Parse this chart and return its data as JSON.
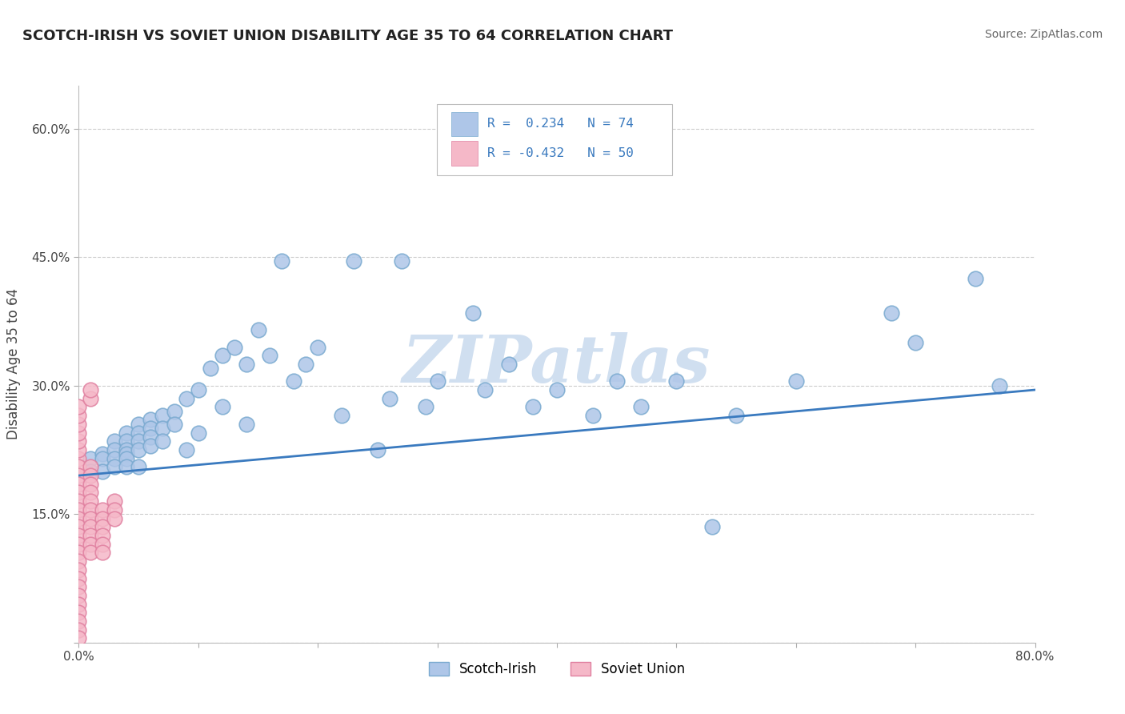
{
  "title": "SCOTCH-IRISH VS SOVIET UNION DISABILITY AGE 35 TO 64 CORRELATION CHART",
  "source": "Source: ZipAtlas.com",
  "ylabel_label": "Disability Age 35 to 64",
  "xlim": [
    0.0,
    0.8
  ],
  "ylim": [
    0.0,
    0.65
  ],
  "xticks": [
    0.0,
    0.1,
    0.2,
    0.3,
    0.4,
    0.5,
    0.6,
    0.7,
    0.8
  ],
  "xticklabels": [
    "0.0%",
    "",
    "",
    "",
    "",
    "",
    "",
    "",
    "80.0%"
  ],
  "yticks": [
    0.0,
    0.15,
    0.3,
    0.45,
    0.6
  ],
  "yticklabels": [
    "",
    "15.0%",
    "30.0%",
    "45.0%",
    "60.0%"
  ],
  "scotch_irish_color": "#aec6e8",
  "soviet_union_color": "#f5b8c8",
  "line_color": "#3a7abf",
  "regression_line": [
    [
      0.0,
      0.195
    ],
    [
      0.8,
      0.295
    ]
  ],
  "scotch_irish_x": [
    0.01,
    0.01,
    0.02,
    0.02,
    0.02,
    0.03,
    0.03,
    0.03,
    0.03,
    0.04,
    0.04,
    0.04,
    0.04,
    0.04,
    0.04,
    0.05,
    0.05,
    0.05,
    0.05,
    0.05,
    0.06,
    0.06,
    0.06,
    0.06,
    0.07,
    0.07,
    0.07,
    0.08,
    0.08,
    0.09,
    0.09,
    0.1,
    0.1,
    0.11,
    0.12,
    0.12,
    0.13,
    0.14,
    0.14,
    0.15,
    0.16,
    0.17,
    0.18,
    0.19,
    0.2,
    0.22,
    0.23,
    0.25,
    0.26,
    0.27,
    0.29,
    0.3,
    0.33,
    0.34,
    0.36,
    0.38,
    0.4,
    0.43,
    0.45,
    0.47,
    0.5,
    0.53,
    0.55,
    0.6,
    0.68,
    0.7,
    0.75,
    0.77
  ],
  "scotch_irish_y": [
    0.215,
    0.2,
    0.22,
    0.215,
    0.2,
    0.235,
    0.225,
    0.215,
    0.205,
    0.245,
    0.235,
    0.225,
    0.22,
    0.215,
    0.205,
    0.255,
    0.245,
    0.235,
    0.225,
    0.205,
    0.26,
    0.25,
    0.24,
    0.23,
    0.265,
    0.25,
    0.235,
    0.27,
    0.255,
    0.285,
    0.225,
    0.295,
    0.245,
    0.32,
    0.335,
    0.275,
    0.345,
    0.325,
    0.255,
    0.365,
    0.335,
    0.445,
    0.305,
    0.325,
    0.345,
    0.265,
    0.445,
    0.225,
    0.285,
    0.445,
    0.275,
    0.305,
    0.385,
    0.295,
    0.325,
    0.275,
    0.295,
    0.265,
    0.305,
    0.275,
    0.305,
    0.135,
    0.265,
    0.305,
    0.385,
    0.35,
    0.425,
    0.3
  ],
  "soviet_union_x": [
    0.0,
    0.0,
    0.0,
    0.0,
    0.0,
    0.0,
    0.0,
    0.0,
    0.0,
    0.0,
    0.0,
    0.0,
    0.0,
    0.0,
    0.0,
    0.0,
    0.0,
    0.0,
    0.0,
    0.0,
    0.0,
    0.0,
    0.0,
    0.0,
    0.0,
    0.0,
    0.0,
    0.0,
    0.01,
    0.01,
    0.01,
    0.01,
    0.01,
    0.01,
    0.01,
    0.01,
    0.01,
    0.01,
    0.01,
    0.01,
    0.01,
    0.02,
    0.02,
    0.02,
    0.02,
    0.02,
    0.02,
    0.03,
    0.03,
    0.03
  ],
  "soviet_union_y": [
    0.215,
    0.205,
    0.195,
    0.185,
    0.175,
    0.165,
    0.155,
    0.145,
    0.135,
    0.125,
    0.115,
    0.105,
    0.095,
    0.085,
    0.075,
    0.065,
    0.055,
    0.045,
    0.035,
    0.025,
    0.015,
    0.005,
    0.225,
    0.235,
    0.245,
    0.255,
    0.265,
    0.275,
    0.285,
    0.295,
    0.205,
    0.195,
    0.185,
    0.175,
    0.165,
    0.155,
    0.145,
    0.135,
    0.125,
    0.115,
    0.105,
    0.155,
    0.145,
    0.135,
    0.125,
    0.115,
    0.105,
    0.165,
    0.155,
    0.145
  ],
  "background_color": "#ffffff",
  "watermark_text": "ZIPatlas",
  "watermark_color": "#d0dff0",
  "grid_color": "#cccccc"
}
